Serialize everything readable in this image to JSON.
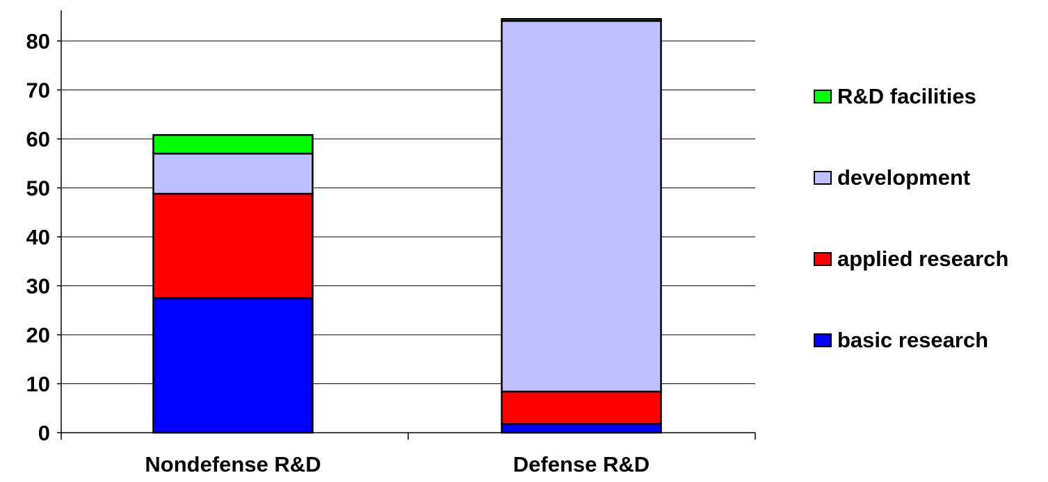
{
  "chart_data": {
    "type": "bar",
    "stacked": true,
    "categories": [
      "Nondefense R&D",
      "Defense R&D"
    ],
    "series": [
      {
        "name": "basic research",
        "color": "#0000ff",
        "values": [
          27.5,
          1.8
        ]
      },
      {
        "name": "applied research",
        "color": "#ff0000",
        "values": [
          21.3,
          6.6
        ]
      },
      {
        "name": "development",
        "color": "#c0c0ff",
        "values": [
          8.2,
          75.7
        ]
      },
      {
        "name": "R&D facilities",
        "color": "#00ff00",
        "values": [
          3.8,
          0.4
        ]
      }
    ],
    "title": "",
    "xlabel": "",
    "ylabel": "",
    "ylim": [
      0,
      87
    ],
    "yticks": [
      0,
      10,
      20,
      30,
      40,
      50,
      60,
      70,
      80
    ],
    "grid": true,
    "legend_position": "right",
    "legend_order": [
      "R&D facilities",
      "development",
      "applied research",
      "basic research"
    ]
  }
}
